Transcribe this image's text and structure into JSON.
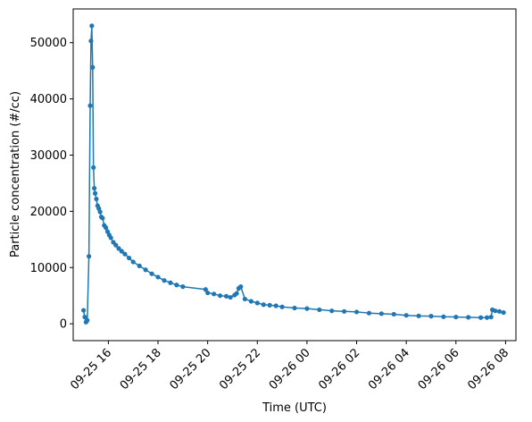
{
  "chart_data": {
    "type": "line",
    "markers": true,
    "xlabel": "Time (UTC)",
    "ylabel": "Particle concentration (#/cc)",
    "x_tick_labels": [
      "09-25 16",
      "09-25 18",
      "09-25 20",
      "09-25 22",
      "09-26 00",
      "09-26 02",
      "09-26 04",
      "09-26 06",
      "09-26 08"
    ],
    "x_ticks": [
      "2024-09-25 16:00",
      "2024-09-25 18:00",
      "2024-09-25 20:00",
      "2024-09-25 22:00",
      "2024-09-26 00:00",
      "2024-09-26 02:00",
      "2024-09-26 04:00",
      "2024-09-26 06:00",
      "2024-09-26 08:00"
    ],
    "xlim": [
      "2024-09-25 14:35",
      "2024-09-26 08:25"
    ],
    "y_ticks": [
      0,
      10000,
      20000,
      30000,
      40000,
      50000
    ],
    "ylim": [
      -3000,
      56000
    ],
    "grid": false,
    "color": "#1f77b4",
    "series": [
      {
        "x": [
          "2024-09-25 15:00",
          "2024-09-25 15:03",
          "2024-09-25 15:06",
          "2024-09-25 15:09",
          "2024-09-25 15:13",
          "2024-09-25 15:16",
          "2024-09-25 15:18",
          "2024-09-25 15:20",
          "2024-09-25 15:22",
          "2024-09-25 15:24",
          "2024-09-25 15:26",
          "2024-09-25 15:28",
          "2024-09-25 15:31",
          "2024-09-25 15:34",
          "2024-09-25 15:37",
          "2024-09-25 15:40",
          "2024-09-25 15:43",
          "2024-09-25 15:46",
          "2024-09-25 15:50",
          "2024-09-25 15:54",
          "2024-09-25 15:58",
          "2024-09-25 16:02",
          "2024-09-25 16:06",
          "2024-09-25 16:12",
          "2024-09-25 16:18",
          "2024-09-25 16:25",
          "2024-09-25 16:32",
          "2024-09-25 16:40",
          "2024-09-25 16:50",
          "2024-09-25 17:00",
          "2024-09-25 17:15",
          "2024-09-25 17:30",
          "2024-09-25 17:45",
          "2024-09-25 18:00",
          "2024-09-25 18:15",
          "2024-09-25 18:30",
          "2024-09-25 18:45",
          "2024-09-25 19:00",
          "2024-09-25 19:55",
          "2024-09-25 20:00",
          "2024-09-25 20:15",
          "2024-09-25 20:30",
          "2024-09-25 20:45",
          "2024-09-25 20:55",
          "2024-09-25 21:05",
          "2024-09-25 21:10",
          "2024-09-25 21:15",
          "2024-09-25 21:20",
          "2024-09-25 21:30",
          "2024-09-25 21:45",
          "2024-09-25 22:00",
          "2024-09-25 22:15",
          "2024-09-25 22:30",
          "2024-09-25 22:45",
          "2024-09-25 23:00",
          "2024-09-25 23:30",
          "2024-09-26 00:00",
          "2024-09-26 00:30",
          "2024-09-26 01:00",
          "2024-09-26 01:30",
          "2024-09-26 02:00",
          "2024-09-26 02:30",
          "2024-09-26 03:00",
          "2024-09-26 03:30",
          "2024-09-26 04:00",
          "2024-09-26 04:30",
          "2024-09-26 05:00",
          "2024-09-26 05:30",
          "2024-09-26 06:00",
          "2024-09-26 06:30",
          "2024-09-26 07:00",
          "2024-09-26 07:15",
          "2024-09-26 07:25",
          "2024-09-26 07:28",
          "2024-09-26 07:35",
          "2024-09-26 07:45",
          "2024-09-26 07:55"
        ],
        "values": [
          2400,
          1200,
          300,
          600,
          12000,
          38800,
          50300,
          53000,
          45600,
          27800,
          24100,
          23200,
          22200,
          21000,
          20500,
          19900,
          19000,
          18800,
          17500,
          17100,
          16400,
          15800,
          15300,
          14500,
          14000,
          13400,
          12900,
          12400,
          11700,
          11000,
          10300,
          9600,
          8900,
          8300,
          7700,
          7300,
          6900,
          6600,
          6100,
          5500,
          5300,
          5000,
          4900,
          4700,
          5100,
          5400,
          6300,
          6600,
          4400,
          4000,
          3700,
          3400,
          3300,
          3200,
          3000,
          2800,
          2700,
          2500,
          2300,
          2200,
          2100,
          1900,
          1800,
          1700,
          1500,
          1400,
          1350,
          1250,
          1200,
          1150,
          1100,
          1100,
          1200,
          2500,
          2300,
          2200,
          2000
        ]
      }
    ]
  }
}
